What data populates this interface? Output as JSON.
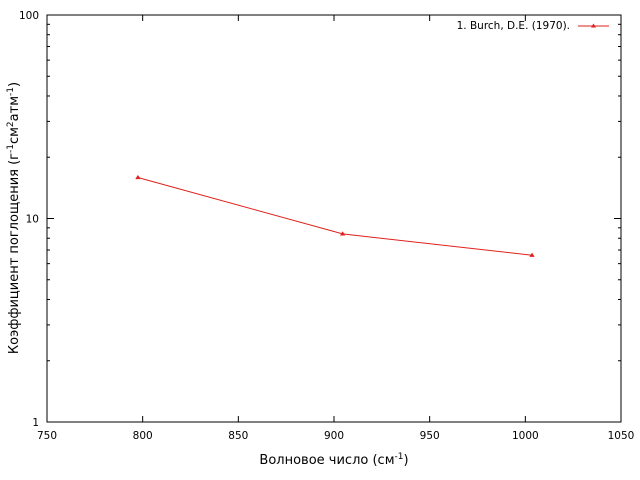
{
  "chart_data": {
    "type": "line",
    "xlabel": "Волновое число (см",
    "xlabel_sup": "-1",
    "xlabel_end": ")",
    "ylabel_parts": [
      "Коэффициент поглощения (г",
      "-1",
      "см",
      "2",
      "атм",
      "-1",
      ")"
    ],
    "x_scale": "linear",
    "y_scale": "log",
    "xlim": [
      750,
      1050
    ],
    "ylim": [
      1,
      100
    ],
    "x_ticks": [
      "750",
      "800",
      "850",
      "900",
      "950",
      "1000",
      "1050"
    ],
    "y_ticks": [
      "1",
      "10",
      "100"
    ],
    "legend_position": "top-right",
    "grid": false,
    "series": [
      {
        "name": "1. Burch, D.E. (1970).",
        "color": "#e0201b",
        "marker": "triangle",
        "points": [
          {
            "x": 797.5,
            "y": 15.9
          },
          {
            "x": 904.5,
            "y": 8.4
          },
          {
            "x": 1003.5,
            "y": 6.6
          }
        ]
      }
    ]
  }
}
